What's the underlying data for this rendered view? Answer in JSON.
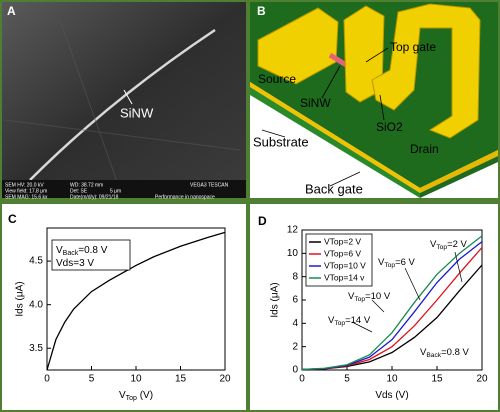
{
  "sem": {
    "label": "A",
    "annotation": "SiNW",
    "info": [
      "SEM HV: 20.0 kV",
      "WD: 38.72 mm",
      "VEGA3 TESCAN",
      "View field: 17.8 μm",
      "Det: SE",
      "5 μm",
      "SEM MAG: 15.6 kx",
      "Date(m/d/y): 09/21/18",
      "Performance in nanospace"
    ]
  },
  "diagram": {
    "label": "B",
    "labels": [
      "Source",
      "Top gate",
      "SiNW",
      "SiO2",
      "Drain",
      "Substrate",
      "Back gate"
    ]
  },
  "chart_data": [
    {
      "type": "line",
      "label": "C",
      "ylabel": "Ids (μA)",
      "xlabel": {
        "main": "V",
        "sub": "Top",
        "rest": " (V)"
      },
      "annotations": [
        {
          "main": "V",
          "sub": "Back",
          "rest": "=0.8 V"
        },
        {
          "main": "Vds=3 V"
        }
      ],
      "x": [
        0,
        1,
        2,
        3,
        5,
        7,
        10,
        12,
        15,
        18,
        20
      ],
      "values": [
        3.25,
        3.6,
        3.8,
        3.95,
        4.15,
        4.28,
        4.45,
        4.55,
        4.67,
        4.77,
        4.83
      ],
      "color": "#000000",
      "xlim": [
        0,
        20
      ],
      "xticks": [
        0,
        5,
        10,
        15,
        20
      ],
      "ylim": [
        3.25,
        4.88
      ],
      "yticks": [
        3.5,
        {
          "value": 4,
          "label": "4.0"
        },
        4.5
      ]
    },
    {
      "type": "line",
      "label": "D",
      "ylabel": "Ids (μA)",
      "xlabel": {
        "main": "Vds (V)"
      },
      "annotations": [
        {
          "main": "V",
          "sub": "Top",
          "rest": "=2 V"
        },
        {
          "main": "V",
          "sub": "Top",
          "rest": "=6 V"
        },
        {
          "main": "V",
          "sub": "Top",
          "rest": "=10 V"
        },
        {
          "main": "V",
          "sub": "Top",
          "rest": "=14 V"
        },
        {
          "main": "V",
          "sub": "Back",
          "rest": "=0.8 V"
        }
      ],
      "x": [
        0,
        2.5,
        5,
        7.5,
        10,
        12.5,
        15,
        17.5,
        20
      ],
      "series": [
        {
          "name": "VTop=2 V",
          "color": "#000000",
          "values": [
            0.05,
            0.1,
            0.3,
            0.7,
            1.5,
            2.8,
            4.5,
            6.8,
            9.0
          ]
        },
        {
          "name": "VTop=6 V",
          "color": "#e0101a",
          "values": [
            0.05,
            0.1,
            0.35,
            0.9,
            2.0,
            3.8,
            6.0,
            8.3,
            10.5
          ]
        },
        {
          "name": "VTop=10 V",
          "color": "#1a1ad0",
          "values": [
            0.05,
            0.12,
            0.4,
            1.1,
            2.6,
            5.0,
            7.5,
            9.5,
            11.0
          ]
        },
        {
          "name": "VTop=14 v",
          "color": "#1a8a50",
          "values": [
            0.05,
            0.15,
            0.45,
            1.3,
            3.2,
            5.8,
            8.2,
            10.0,
            11.5
          ]
        }
      ],
      "xlim": [
        0,
        20
      ],
      "xticks": [
        0,
        5,
        10,
        15,
        20
      ],
      "ylim": [
        0,
        12
      ],
      "yticks": [
        0,
        2,
        4,
        6,
        8,
        10,
        12
      ],
      "legend": "upper left"
    }
  ]
}
